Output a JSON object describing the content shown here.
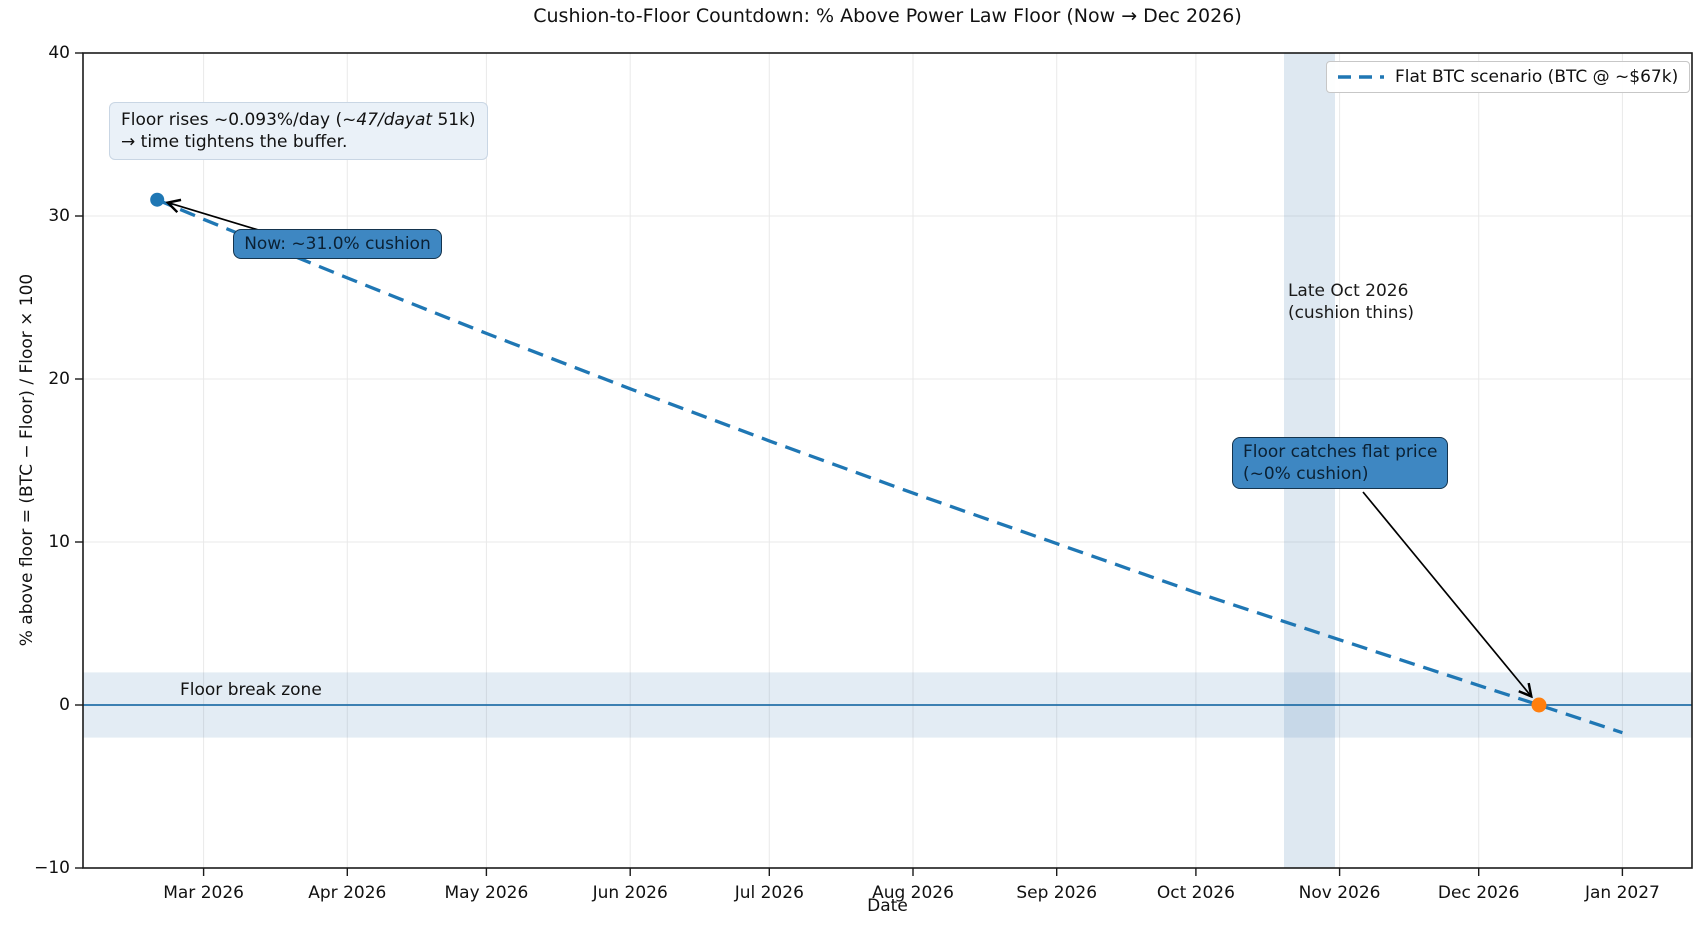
{
  "title": "Cushion-to-Floor Countdown: % Above Power Law Floor (Now → Dec 2026)",
  "axes": {
    "xlabel": "Date",
    "ylabel": "% above floor  =  (BTC − Floor) / Floor × 100"
  },
  "legend": {
    "label": "Flat BTC scenario (BTC @ ~$67k)",
    "line_color": "#1f77b4",
    "line_style": "dashed",
    "position": "upper right"
  },
  "annotations": {
    "info": {
      "line1_pre": "Floor rises ~0.093%/day (~",
      "line1_italic": "47/dayat",
      "line1_post": " 51k)",
      "line2": "→ time tightens the buffer."
    },
    "now": "Now: ~31.0% cushion",
    "floor_catch": {
      "line1": "Floor catches flat price",
      "line2": "(~0% cushion)"
    },
    "late_oct": {
      "line1": "Late Oct 2026",
      "line2": "(cushion thins)"
    },
    "floor_break_zone": "Floor break zone"
  },
  "chart_data": {
    "type": "line",
    "title": "Cushion-to-Floor Countdown: % Above Power Law Floor (Now → Dec 2026)",
    "xlabel": "Date",
    "ylabel": "% above floor = (BTC − Floor) / Floor × 100",
    "ylim": [
      -10,
      40
    ],
    "x_domain": [
      "2026-02-03",
      "2027-01-16"
    ],
    "grid": true,
    "legend_position": "upper right",
    "y_ticks": [
      {
        "value": 40,
        "label": "40"
      },
      {
        "value": 30,
        "label": "30"
      },
      {
        "value": 20,
        "label": "20"
      },
      {
        "value": 10,
        "label": "10"
      },
      {
        "value": 0,
        "label": "0"
      },
      {
        "value": -10,
        "label": "−10"
      }
    ],
    "x_ticks": [
      {
        "date": "2026-03-01",
        "label": "Mar 2026"
      },
      {
        "date": "2026-04-01",
        "label": "Apr 2026"
      },
      {
        "date": "2026-05-01",
        "label": "May 2026"
      },
      {
        "date": "2026-06-01",
        "label": "Jun 2026"
      },
      {
        "date": "2026-07-01",
        "label": "Jul 2026"
      },
      {
        "date": "2026-08-01",
        "label": "Aug 2026"
      },
      {
        "date": "2026-09-01",
        "label": "Sep 2026"
      },
      {
        "date": "2026-10-01",
        "label": "Oct 2026"
      },
      {
        "date": "2026-11-01",
        "label": "Nov 2026"
      },
      {
        "date": "2026-12-01",
        "label": "Dec 2026"
      },
      {
        "date": "2027-01-01",
        "label": "Jan 2027"
      }
    ],
    "series": [
      {
        "name": "Flat BTC scenario (BTC @ ~$67k)",
        "color": "#1f77b4",
        "style": "dashed",
        "points": [
          {
            "date": "2026-02-19",
            "value": 31.0
          },
          {
            "date": "2026-03-01",
            "value": 29.8
          },
          {
            "date": "2026-04-01",
            "value": 26.2
          },
          {
            "date": "2026-05-01",
            "value": 22.8
          },
          {
            "date": "2026-06-01",
            "value": 19.4
          },
          {
            "date": "2026-07-01",
            "value": 16.2
          },
          {
            "date": "2026-08-01",
            "value": 13.0
          },
          {
            "date": "2026-09-01",
            "value": 9.9
          },
          {
            "date": "2026-10-01",
            "value": 6.9
          },
          {
            "date": "2026-11-01",
            "value": 4.0
          },
          {
            "date": "2026-12-01",
            "value": 1.2
          },
          {
            "date": "2026-12-14",
            "value": 0.0
          },
          {
            "date": "2027-01-01",
            "value": -1.7
          }
        ]
      }
    ],
    "markers": [
      {
        "name": "now-point",
        "date": "2026-02-19",
        "value": 31.0,
        "color": "#1f77b4",
        "radius": 7,
        "label": "Now: ~31.0% cushion"
      },
      {
        "name": "zero-cross-point",
        "date": "2026-12-14",
        "value": 0.0,
        "color": "#ff7f0e",
        "radius": 7.5,
        "label": "Floor catches flat price (~0% cushion)"
      }
    ],
    "zero_line": {
      "value": 0,
      "color": "#2470a8"
    },
    "bands": {
      "horizontal": {
        "from": -2,
        "to": 2,
        "opacity": 0.15,
        "label": "Floor break zone"
      },
      "vertical": {
        "from": "2026-10-20",
        "to": "2026-10-31",
        "opacity": 0.18,
        "label": "Late Oct 2026 (cushion thins)"
      }
    }
  }
}
